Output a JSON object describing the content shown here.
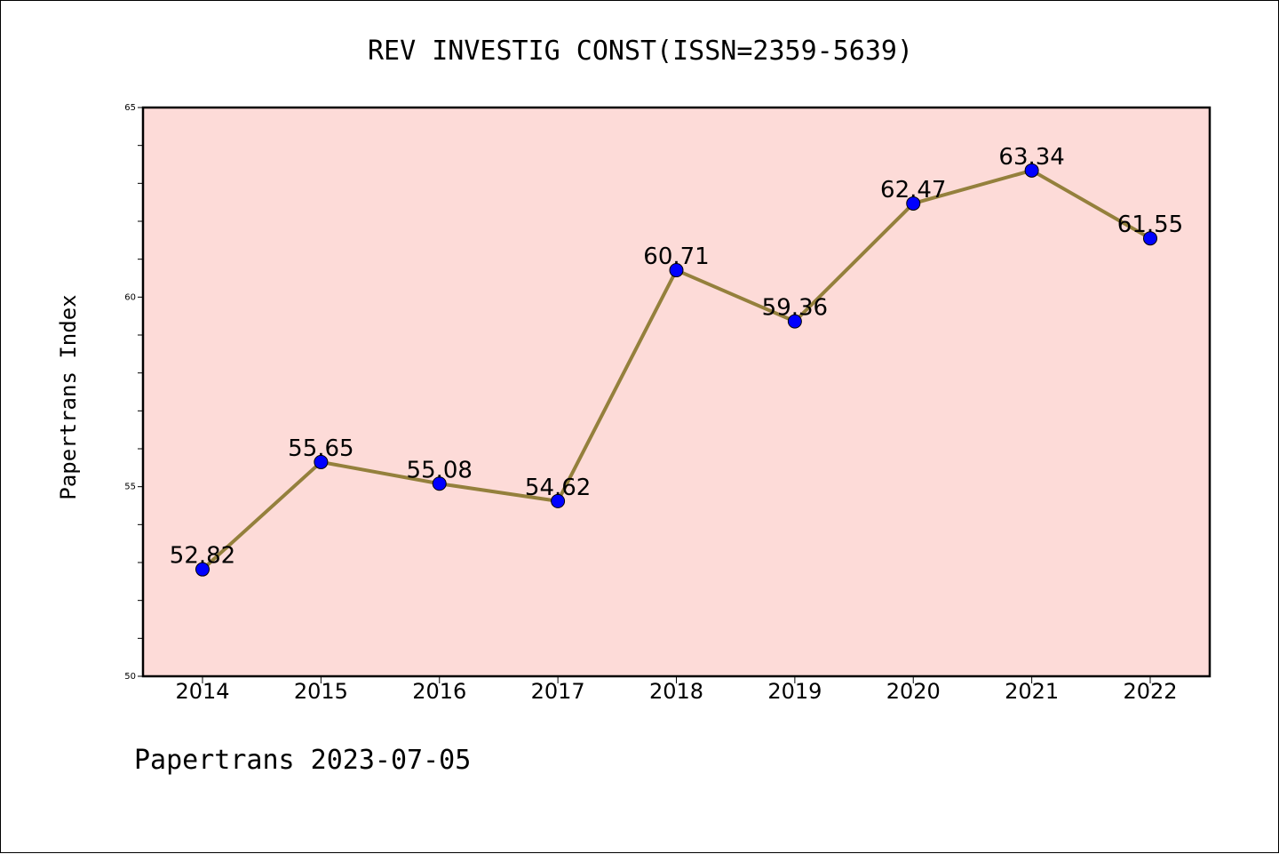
{
  "chart_data": {
    "type": "line",
    "title": "REV INVESTIG CONST(ISSN=2359-5639)",
    "ylabel": "Papertrans Index",
    "xlabel": "",
    "categories": [
      "2014",
      "2015",
      "2016",
      "2017",
      "2018",
      "2019",
      "2020",
      "2021",
      "2022"
    ],
    "values": [
      52.82,
      55.65,
      55.08,
      54.62,
      60.71,
      59.36,
      62.47,
      63.34,
      61.55
    ],
    "value_labels": [
      "52.82",
      "55.65",
      "55.08",
      "54.62",
      "60.71",
      "59.36",
      "62.47",
      "63.34",
      "61.55"
    ],
    "ylim": [
      50,
      65
    ],
    "yticks": [
      50,
      55,
      60,
      65
    ],
    "ytick_labels": [
      "50",
      "55",
      "60",
      "65"
    ],
    "grid": false,
    "colors": {
      "plot_background": "#fddbd8",
      "line": "#94803c",
      "marker": "#0000ff"
    }
  },
  "footer": "Papertrans 2023-07-05"
}
